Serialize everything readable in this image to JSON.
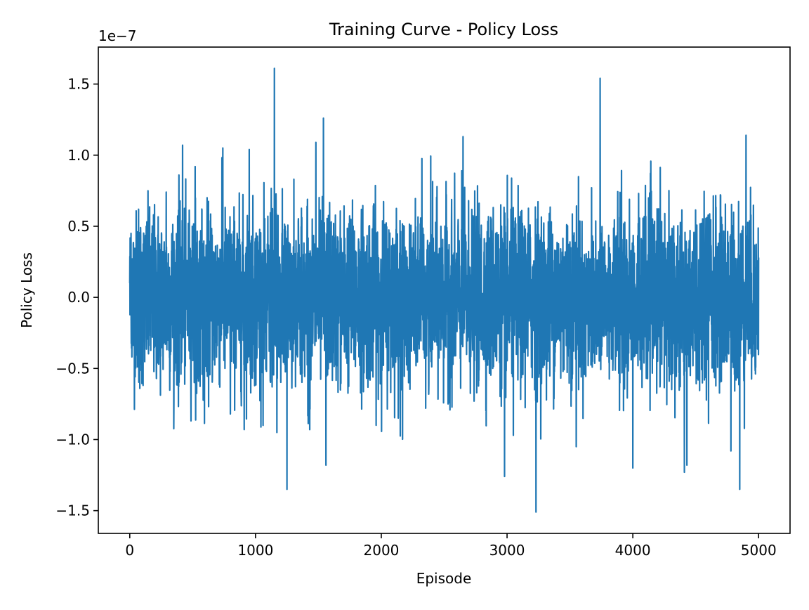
{
  "chart_data": {
    "type": "line",
    "title": "Training Curve - Policy Loss",
    "xlabel": "Episode",
    "ylabel": "Policy Loss",
    "y_multiplier_label": "1e−7",
    "xlim": [
      -250,
      5250
    ],
    "ylim": [
      -1.66e-07,
      1.76e-07
    ],
    "grid": false,
    "legend": "none",
    "x_ticks": [
      {
        "value": 0,
        "label": "0"
      },
      {
        "value": 1000,
        "label": "1000"
      },
      {
        "value": 2000,
        "label": "2000"
      },
      {
        "value": 3000,
        "label": "3000"
      },
      {
        "value": 4000,
        "label": "4000"
      },
      {
        "value": 5000,
        "label": "5000"
      }
    ],
    "y_ticks": [
      {
        "value": -1.5e-07,
        "label": "−1.5"
      },
      {
        "value": -1e-07,
        "label": "−1.0"
      },
      {
        "value": -5e-08,
        "label": "−0.5"
      },
      {
        "value": 0,
        "label": "0.0"
      },
      {
        "value": 5e-08,
        "label": "0.5"
      },
      {
        "value": 1e-07,
        "label": "1.0"
      },
      {
        "value": 1.5e-07,
        "label": "1.5"
      }
    ],
    "series": [
      {
        "color": "#1f77b4",
        "x_start": 0,
        "x_end": 5000,
        "point_count": 5001,
        "distribution": {
          "mean": 0,
          "std": 3e-08
        },
        "notable_points": [
          {
            "x": 0,
            "y": 1e-08
          },
          {
            "x": 10,
            "y": 4.5e-08
          },
          {
            "x": 70,
            "y": 6.2e-08
          },
          {
            "x": 80,
            "y": -6.4e-08
          },
          {
            "x": 290,
            "y": 7.4e-08
          },
          {
            "x": 420,
            "y": 1.07e-07
          },
          {
            "x": 520,
            "y": 9.2e-08
          },
          {
            "x": 740,
            "y": 1.05e-07
          },
          {
            "x": 800,
            "y": -8.2e-08
          },
          {
            "x": 910,
            "y": -9.3e-08
          },
          {
            "x": 950,
            "y": 1.04e-07
          },
          {
            "x": 1060,
            "y": -9e-08
          },
          {
            "x": 1150,
            "y": 1.61e-07
          },
          {
            "x": 1170,
            "y": -9.5e-08
          },
          {
            "x": 1250,
            "y": -1.35e-07
          },
          {
            "x": 1480,
            "y": 1.09e-07
          },
          {
            "x": 1540,
            "y": 1.26e-07
          },
          {
            "x": 1560,
            "y": -1.18e-07
          },
          {
            "x": 2650,
            "y": 1.13e-07
          },
          {
            "x": 2980,
            "y": -1.26e-07
          },
          {
            "x": 3050,
            "y": -9.7e-08
          },
          {
            "x": 3230,
            "y": -1.51e-07
          },
          {
            "x": 3550,
            "y": -1.05e-07
          },
          {
            "x": 3740,
            "y": 1.54e-07
          },
          {
            "x": 4000,
            "y": -1.2e-07
          },
          {
            "x": 4410,
            "y": -1.23e-07
          },
          {
            "x": 4430,
            "y": -1.18e-07
          },
          {
            "x": 4780,
            "y": -1.08e-07
          },
          {
            "x": 4850,
            "y": -1.35e-07
          },
          {
            "x": 4900,
            "y": 1.14e-07
          },
          {
            "x": 5000,
            "y": 2.8e-08
          }
        ]
      }
    ]
  }
}
